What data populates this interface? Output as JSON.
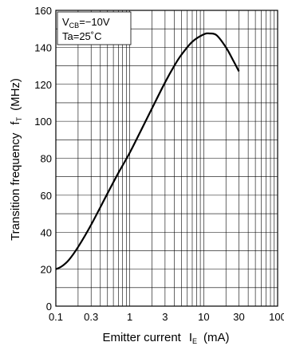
{
  "chart_data": {
    "type": "line",
    "xlabel": {
      "main": "Emitter current",
      "symbol": "I",
      "sub": "E",
      "unit": "(mA)"
    },
    "ylabel": {
      "main": "Transition frequency",
      "symbol": "f",
      "sub": "T",
      "unit": "(MHz)"
    },
    "xscale": "log",
    "xlim": [
      0.1,
      100
    ],
    "ylim": [
      0,
      160
    ],
    "x_ticks": [
      0.1,
      0.3,
      1,
      3,
      10,
      30,
      100
    ],
    "x_tick_labels": [
      "0.1",
      "0.3",
      "1",
      "3",
      "10",
      "30",
      "100"
    ],
    "y_ticks": [
      0,
      20,
      40,
      60,
      80,
      100,
      120,
      140,
      160
    ],
    "y_tick_labels": [
      "0",
      "20",
      "40",
      "60",
      "80",
      "100",
      "120",
      "140",
      "160"
    ],
    "grid": true,
    "conditions": {
      "line1": {
        "symbol": "V",
        "sub": "CB",
        "value": "=−10V"
      },
      "line2": "Ta=25˚C"
    },
    "series": [
      {
        "x": [
          0.1,
          0.12,
          0.15,
          0.2,
          0.3,
          0.5,
          0.7,
          1,
          1.5,
          2,
          3,
          4,
          5,
          7,
          10,
          12,
          15,
          20,
          25,
          30
        ],
        "y": [
          20,
          21.5,
          25,
          32,
          44,
          61,
          72,
          83,
          97,
          107,
          121,
          130,
          136,
          143,
          147,
          147.5,
          146.5,
          140,
          133,
          127
        ]
      }
    ]
  }
}
